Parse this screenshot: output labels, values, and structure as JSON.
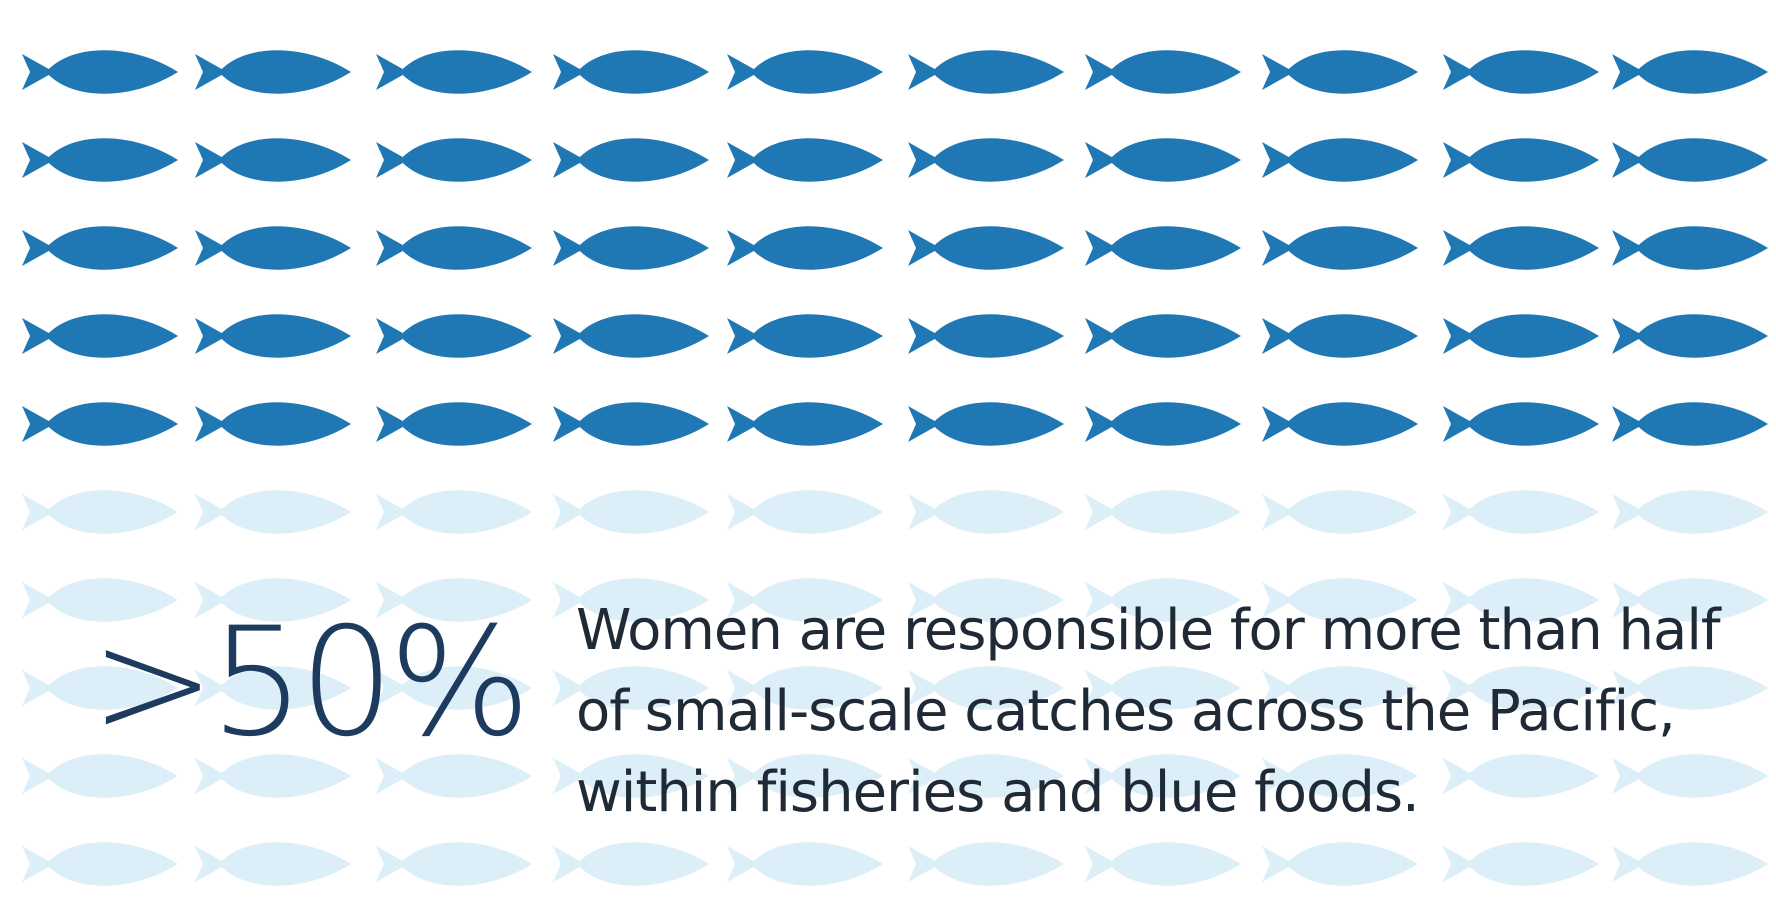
{
  "colors": {
    "fish_dark": "#1f78b4",
    "fish_light": "#dceef8",
    "stat_value": "#1d3a5f",
    "body_text": "#1f2a36",
    "background": "#ffffff"
  },
  "icon": "fish-icon",
  "pictogram": {
    "columns": 10,
    "rows": 10,
    "filled_rows": 5,
    "filled_fraction": 0.5
  },
  "stat": {
    "value": ">50%",
    "lines": [
      "Women are responsible for more than half",
      "of small-scale catches across the Pacific,",
      "within fisheries and blue foods."
    ]
  }
}
